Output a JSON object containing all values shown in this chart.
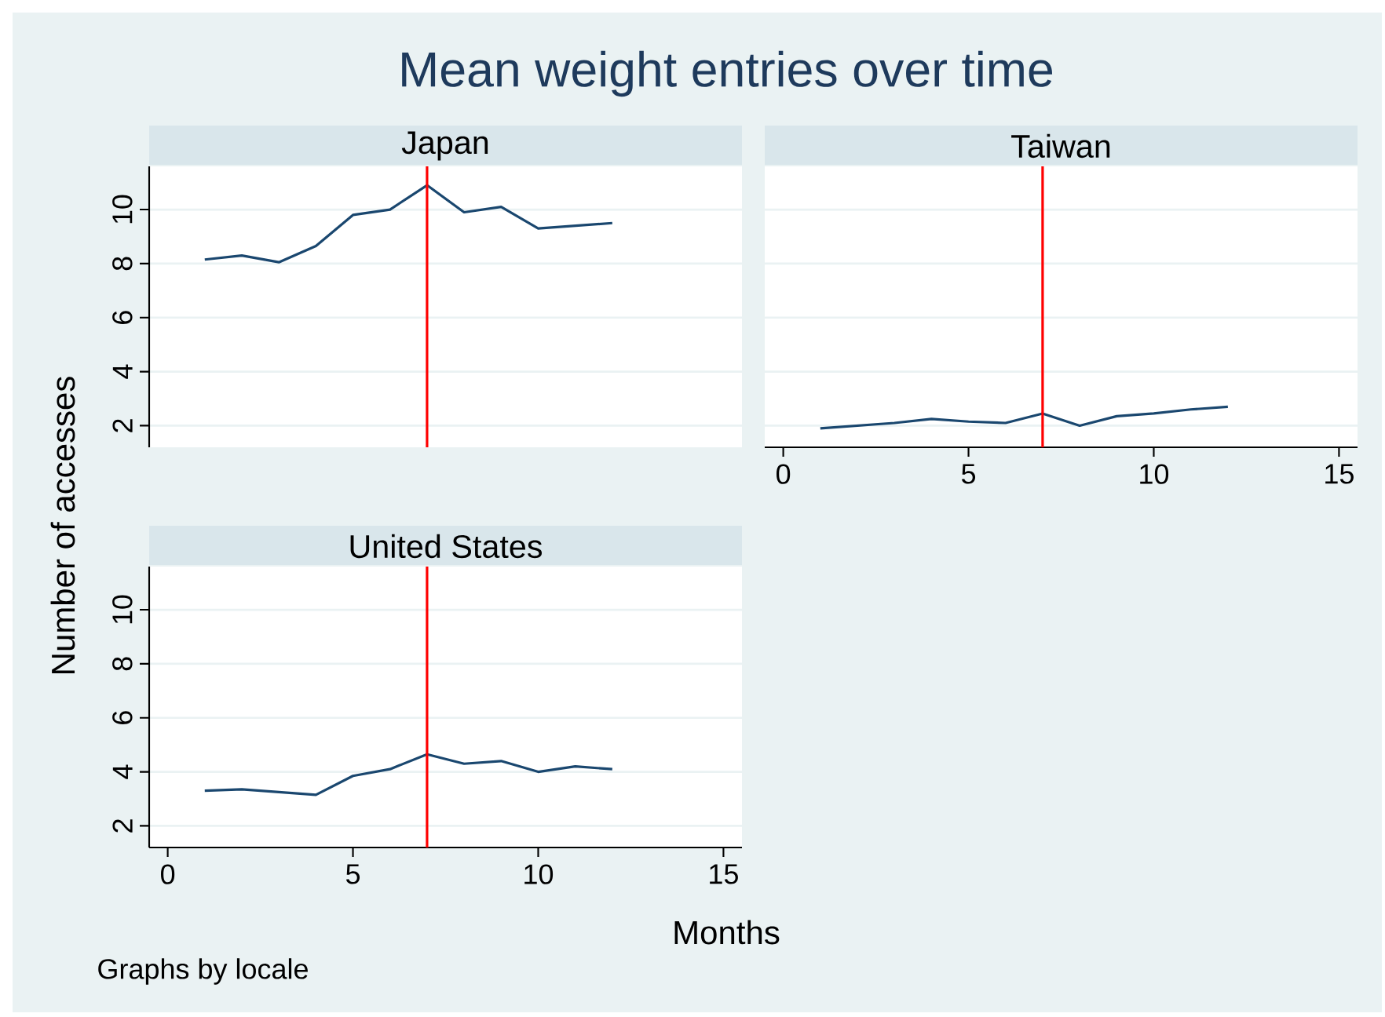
{
  "chart_data": [
    {
      "type": "line",
      "title": "Mean weight entries over time",
      "subtitle": "Japan",
      "x": [
        1,
        2,
        3,
        4,
        5,
        6,
        7,
        8,
        9,
        10,
        11,
        12
      ],
      "values": [
        8.15,
        8.3,
        8.05,
        8.65,
        9.8,
        10,
        10.9,
        9.9,
        10.1,
        9.3,
        9.4,
        9.5
      ],
      "color": "#1a476f",
      "xlim": [
        -0.5,
        15.5
      ],
      "ylim": [
        1.2,
        11.6
      ],
      "yticks": [
        2,
        4,
        6,
        8,
        10
      ],
      "grid": "y",
      "tick_labels": "y",
      "ref_lines": [
        {
          "axis": "x",
          "value": 7,
          "color": "#ff0000"
        }
      ]
    },
    {
      "type": "line",
      "subtitle": "Taiwan",
      "x": [
        1,
        2,
        3,
        4,
        5,
        6,
        7,
        8,
        9,
        10,
        11,
        12
      ],
      "values": [
        1.9,
        2.0,
        2.1,
        2.25,
        2.15,
        2.1,
        2.45,
        2.0,
        2.35,
        2.45,
        2.6,
        2.7
      ],
      "color": "#1a476f",
      "xlim": [
        -0.5,
        15.5
      ],
      "ylim": [
        1.2,
        11.6
      ],
      "xticks": [
        0,
        5,
        10,
        15
      ],
      "yticks": [
        2,
        4,
        6,
        8,
        10
      ],
      "grid": "y",
      "tick_labels": "x",
      "ref_lines": [
        {
          "axis": "x",
          "value": 7,
          "color": "#ff0000"
        }
      ]
    },
    {
      "type": "line",
      "subtitle": "United States",
      "xlabel": "Months",
      "ylabel": "Number of accesses",
      "annotations": [
        "Graphs by locale"
      ],
      "x": [
        1,
        2,
        3,
        4,
        5,
        6,
        7,
        8,
        9,
        10,
        11,
        12
      ],
      "values": [
        3.3,
        3.35,
        3.25,
        3.15,
        3.85,
        4.1,
        4.65,
        4.3,
        4.4,
        4.0,
        4.2,
        4.1
      ],
      "color": "#1a476f",
      "xlim": [
        -0.5,
        15.5
      ],
      "ylim": [
        1.2,
        11.6
      ],
      "xticks": [
        0,
        5,
        10,
        15
      ],
      "yticks": [
        2,
        4,
        6,
        8,
        10
      ],
      "grid": "y",
      "ref_lines": [
        {
          "axis": "x",
          "value": 7,
          "color": "#ff0000"
        }
      ]
    }
  ]
}
